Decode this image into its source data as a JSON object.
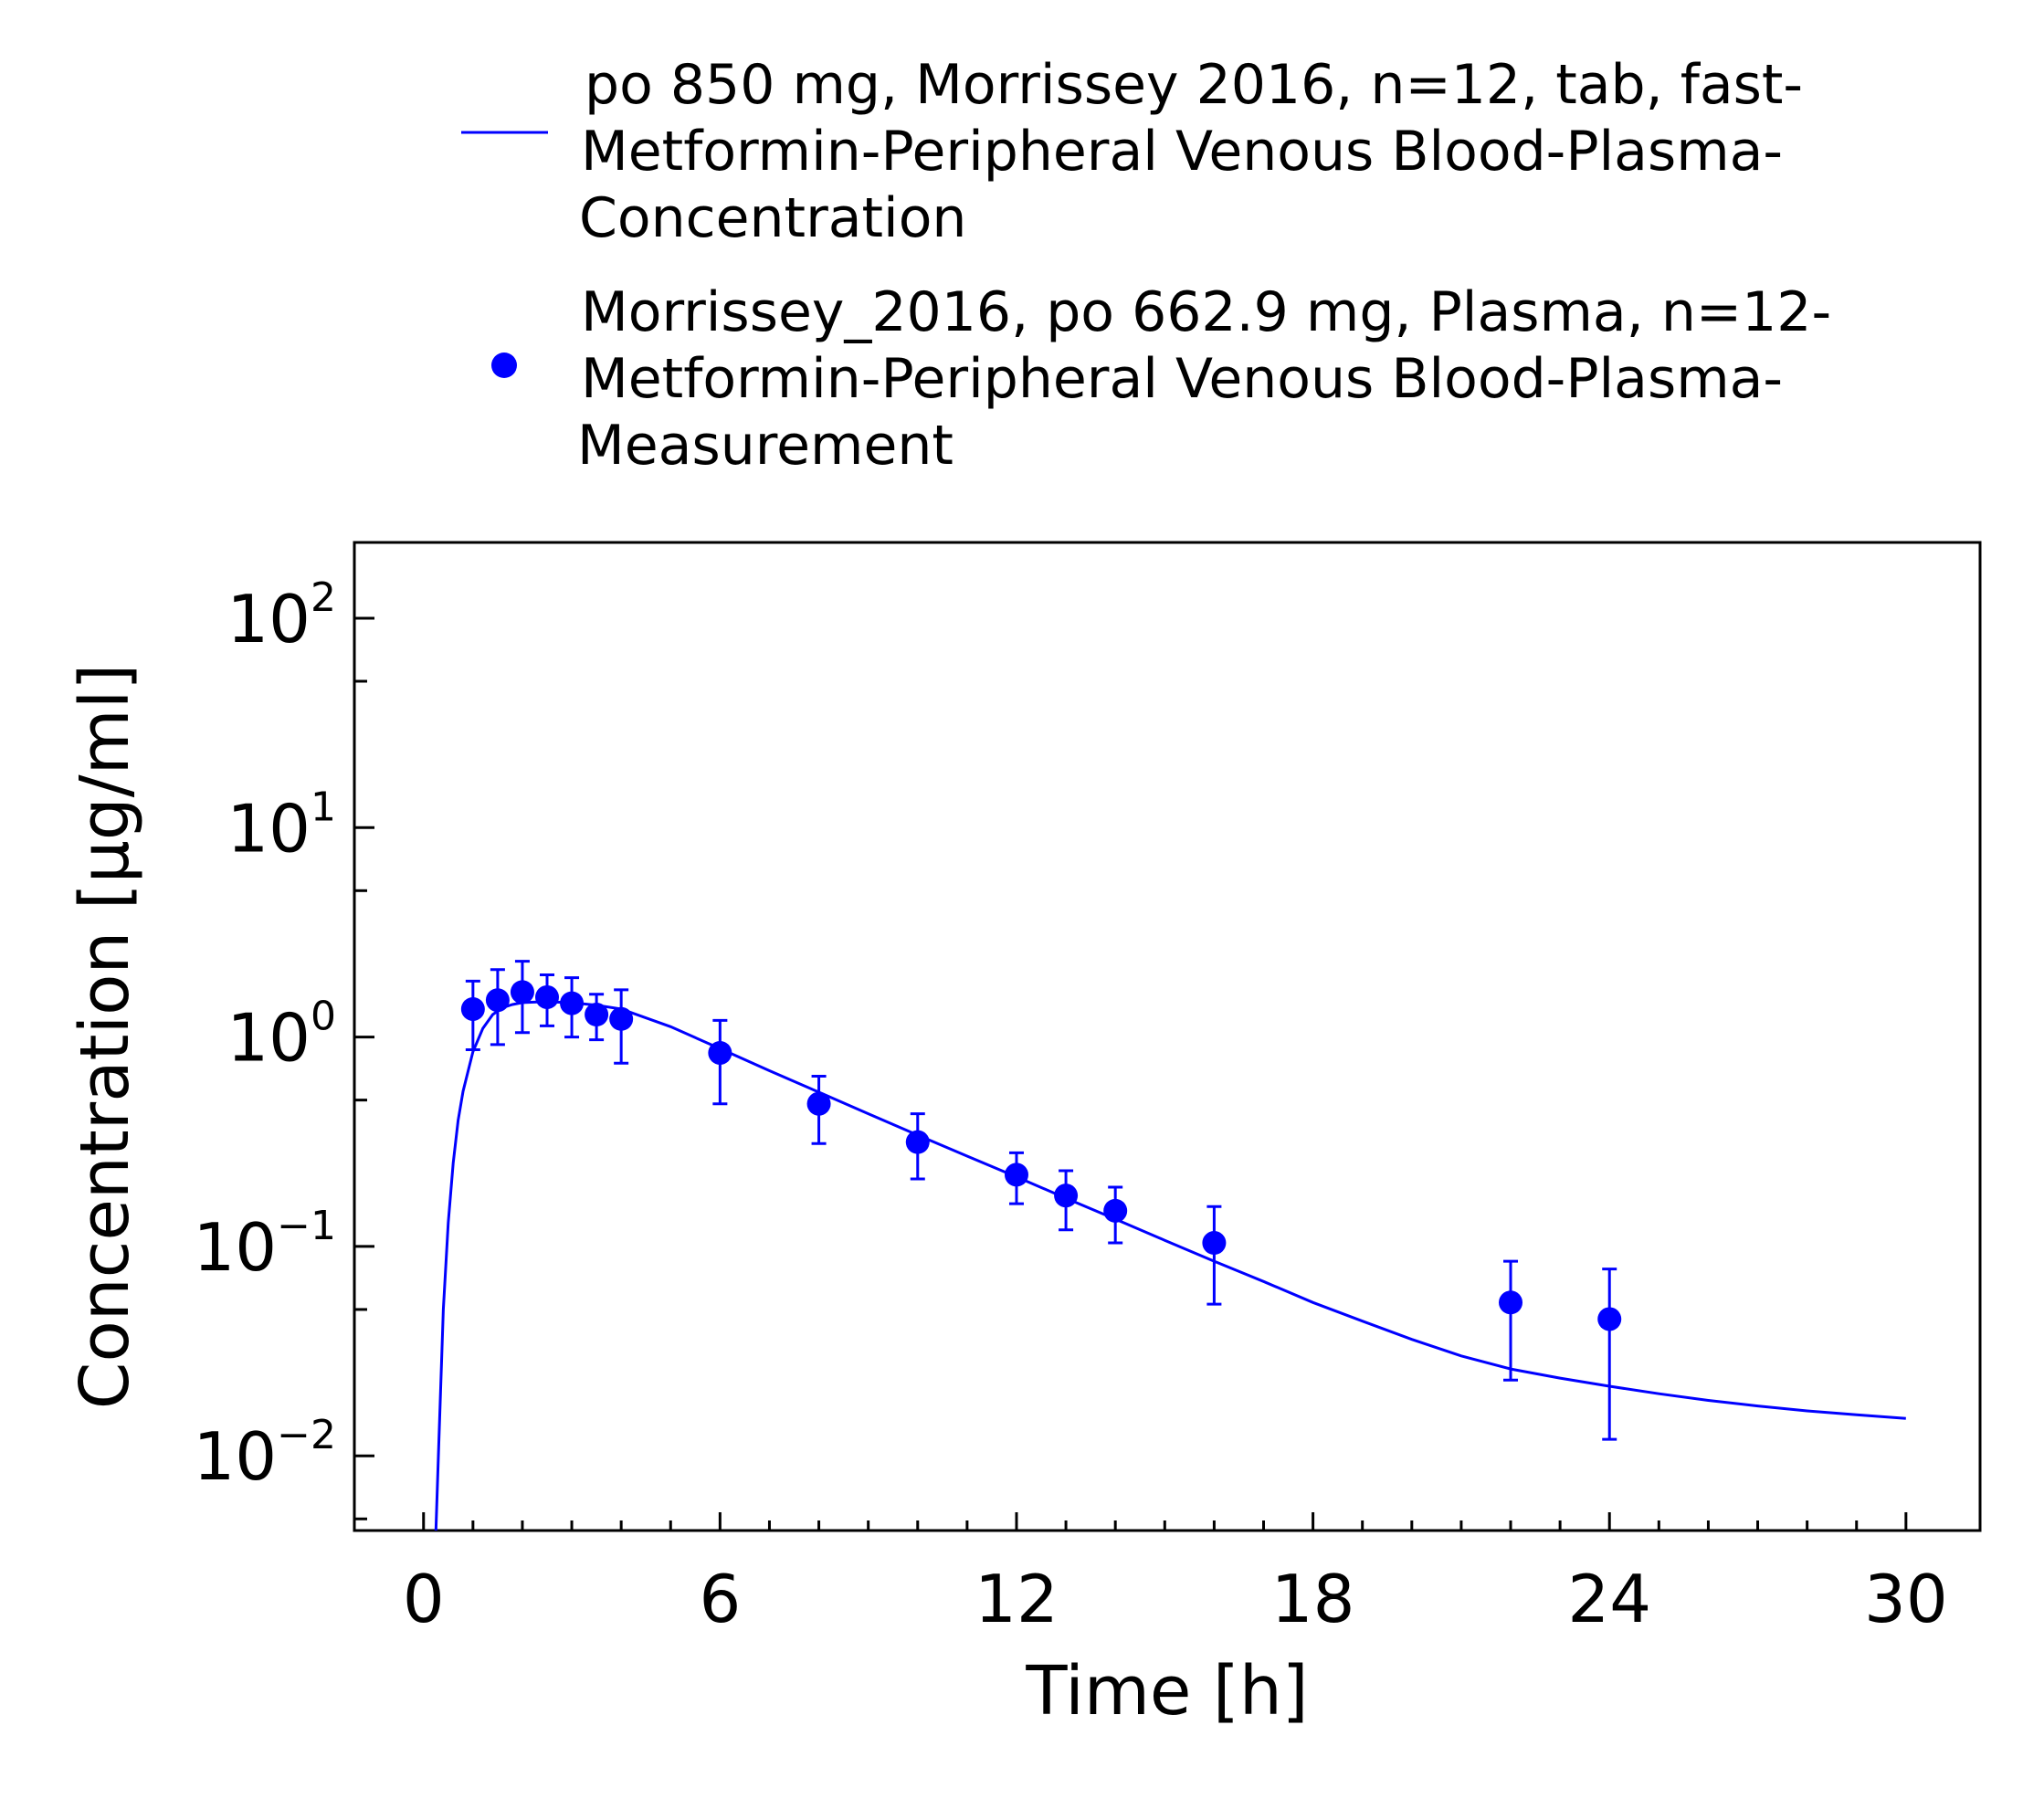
{
  "colors": {
    "series": "#0000ff",
    "axis": "#000000",
    "background": "#ffffff"
  },
  "legend": {
    "placement": "top",
    "entries": [
      {
        "marker": "line",
        "lines": [
          "po 850 mg, Morrissey 2016, n=12, tab, fast-",
          "Metformin-Peripheral Venous Blood-Plasma-",
          "Concentration"
        ]
      },
      {
        "marker": "dot",
        "lines": [
          "Morrissey_2016, po 662.9 mg, Plasma, n=12-",
          "Metformin-Peripheral Venous Blood-Plasma-",
          "Measurement"
        ]
      }
    ]
  },
  "chart_data": {
    "type": "scatter",
    "xlabel": "Time [h]",
    "ylabel": "Concentration [µg/ml]",
    "xlim": [
      -1.4,
      31.5
    ],
    "ylim": [
      0.0044,
      230
    ],
    "yscale": "log",
    "grid": false,
    "x_ticks": [
      0,
      6,
      12,
      18,
      24,
      30
    ],
    "y_ticks": [
      {
        "value": 100,
        "base": "10",
        "exp": "2"
      },
      {
        "value": 10,
        "base": "10",
        "exp": "1"
      },
      {
        "value": 1,
        "base": "10",
        "exp": "0"
      },
      {
        "value": 0.1,
        "base": "10",
        "exp": "−1"
      },
      {
        "value": 0.01,
        "base": "10",
        "exp": "−2"
      }
    ],
    "series": [
      {
        "name": "po 850 mg, Morrissey 2016, n=12, tab, fast-Metformin-Peripheral Venous Blood-Plasma-Concentration",
        "kind": "line",
        "x": [
          0.25,
          0.3,
          0.4,
          0.5,
          0.6,
          0.7,
          0.8,
          1.0,
          1.2,
          1.4,
          1.6,
          1.8,
          2.0,
          2.3,
          2.6,
          3.0,
          3.5,
          4.0,
          5.0,
          6.0,
          7.0,
          8.0,
          9.0,
          10.0,
          11.0,
          12.0,
          13.0,
          14.0,
          15.0,
          16.0,
          17.0,
          18.0,
          19.0,
          20.0,
          21.0,
          22.0,
          23.0,
          24.0,
          25.0,
          26.0,
          27.0,
          28.0,
          29.0,
          30.0
        ],
        "y": [
          0.0044,
          0.01,
          0.05,
          0.13,
          0.25,
          0.4,
          0.55,
          0.85,
          1.1,
          1.28,
          1.38,
          1.43,
          1.46,
          1.47,
          1.47,
          1.46,
          1.42,
          1.36,
          1.12,
          0.88,
          0.69,
          0.545,
          0.43,
          0.34,
          0.27,
          0.215,
          0.17,
          0.135,
          0.107,
          0.085,
          0.068,
          0.054,
          0.044,
          0.036,
          0.03,
          0.026,
          0.0235,
          0.0215,
          0.0198,
          0.0184,
          0.0173,
          0.0164,
          0.0157,
          0.0151
        ]
      },
      {
        "name": "Morrissey_2016, po 662.9 mg, Plasma, n=12-Metformin-Peripheral Venous Blood-Plasma-Measurement",
        "kind": "points",
        "points": [
          {
            "x": 1.0,
            "y": 1.36,
            "lo": 0.87,
            "hi": 1.85
          },
          {
            "x": 1.5,
            "y": 1.5,
            "lo": 0.92,
            "hi": 2.1
          },
          {
            "x": 2.0,
            "y": 1.64,
            "lo": 1.05,
            "hi": 2.3
          },
          {
            "x": 2.5,
            "y": 1.55,
            "lo": 1.13,
            "hi": 1.98
          },
          {
            "x": 3.0,
            "y": 1.45,
            "lo": 1.0,
            "hi": 1.92
          },
          {
            "x": 3.5,
            "y": 1.28,
            "lo": 0.97,
            "hi": 1.6
          },
          {
            "x": 4.0,
            "y": 1.22,
            "lo": 0.75,
            "hi": 1.68
          },
          {
            "x": 6.0,
            "y": 0.84,
            "lo": 0.48,
            "hi": 1.2
          },
          {
            "x": 8.0,
            "y": 0.48,
            "lo": 0.31,
            "hi": 0.65
          },
          {
            "x": 10.0,
            "y": 0.315,
            "lo": 0.21,
            "hi": 0.43
          },
          {
            "x": 12.0,
            "y": 0.22,
            "lo": 0.16,
            "hi": 0.28
          },
          {
            "x": 13.0,
            "y": 0.175,
            "lo": 0.12,
            "hi": 0.23
          },
          {
            "x": 14.0,
            "y": 0.148,
            "lo": 0.104,
            "hi": 0.192
          },
          {
            "x": 16.0,
            "y": 0.104,
            "lo": 0.053,
            "hi": 0.155
          },
          {
            "x": 22.0,
            "y": 0.054,
            "lo": 0.023,
            "hi": 0.085
          },
          {
            "x": 24.0,
            "y": 0.045,
            "lo": 0.012,
            "hi": 0.078
          }
        ]
      }
    ]
  }
}
